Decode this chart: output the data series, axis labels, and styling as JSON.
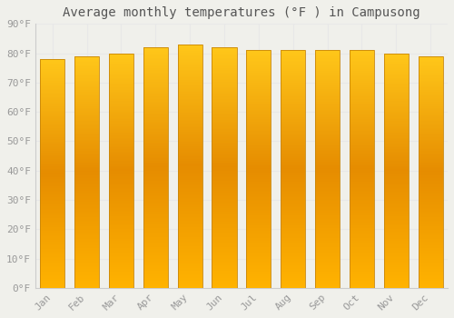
{
  "title": "Average monthly temperatures (°F ) in Campusong",
  "months": [
    "Jan",
    "Feb",
    "Mar",
    "Apr",
    "May",
    "Jun",
    "Jul",
    "Aug",
    "Sep",
    "Oct",
    "Nov",
    "Dec"
  ],
  "values": [
    78,
    79,
    80,
    82,
    83,
    82,
    81,
    81,
    81,
    81,
    80,
    79
  ],
  "bar_color_bottom": "#FFB300",
  "bar_color_mid": "#FFA000",
  "bar_color_top": "#FFD54F",
  "bar_edge_color": "#C8860A",
  "ylim": [
    0,
    90
  ],
  "yticks": [
    0,
    10,
    20,
    30,
    40,
    50,
    60,
    70,
    80,
    90
  ],
  "ytick_labels": [
    "0°F",
    "10°F",
    "20°F",
    "30°F",
    "40°F",
    "50°F",
    "60°F",
    "70°F",
    "80°F",
    "90°F"
  ],
  "background_color": "#f0f0eb",
  "grid_color": "#e8e8e8",
  "title_fontsize": 10,
  "tick_fontsize": 8,
  "font_family": "monospace",
  "bar_width": 0.72
}
